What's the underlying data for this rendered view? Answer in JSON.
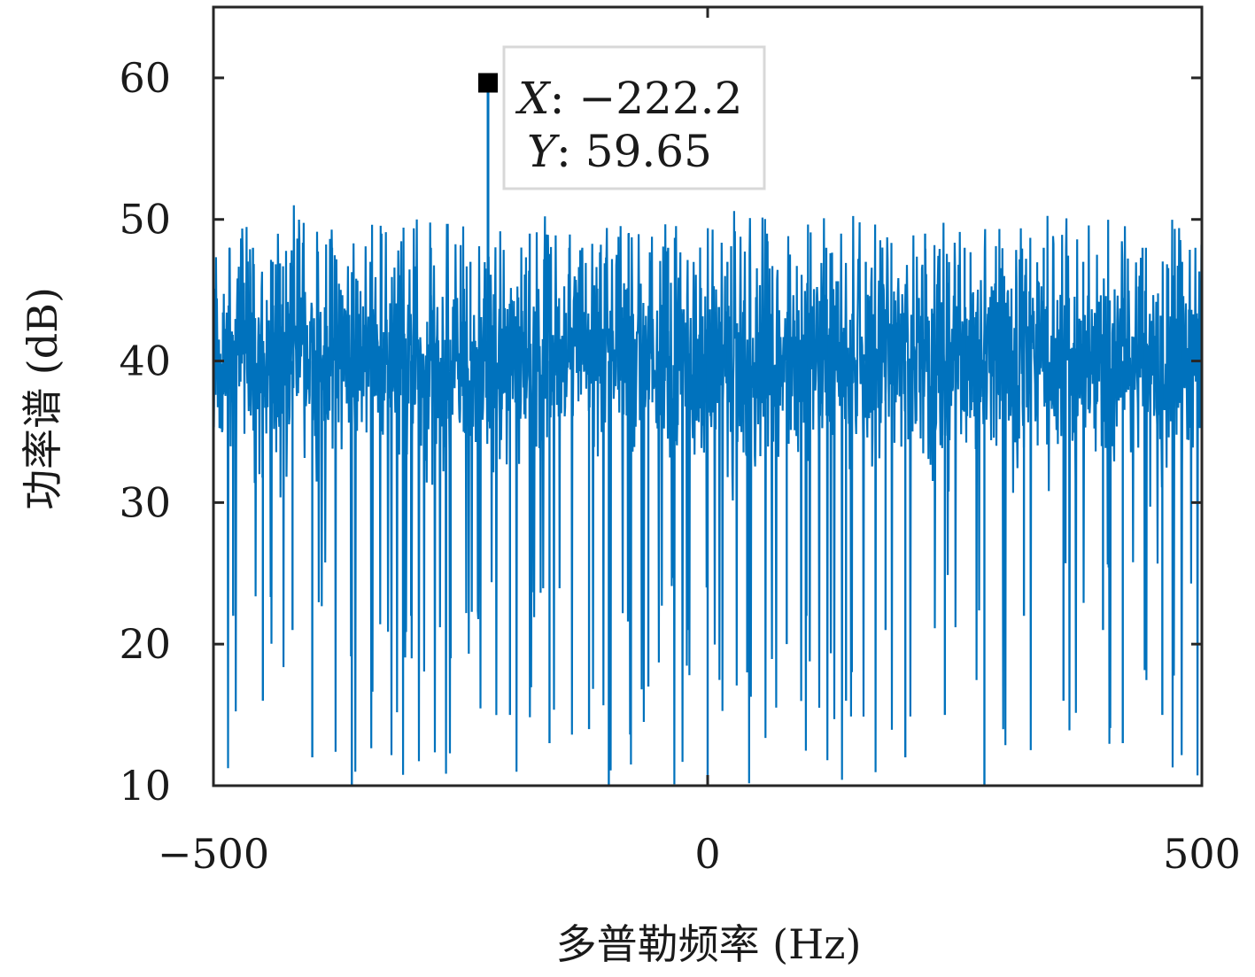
{
  "chart_data": {
    "type": "line",
    "title": "",
    "xlabel": "多普勒频率 (Hz)",
    "ylabel": "功率谱 (dB)",
    "xlim": [
      -500,
      500
    ],
    "ylim": [
      10,
      65
    ],
    "xticks": [
      -500,
      0,
      500
    ],
    "xtick_labels": [
      "−500",
      "0",
      "500"
    ],
    "yticks": [
      10,
      20,
      30,
      40,
      50,
      60
    ],
    "ytick_labels": [
      "10",
      "20",
      "30",
      "40",
      "50",
      "60"
    ],
    "grid": false,
    "series": [
      {
        "color": "#0072bd",
        "description_values": {
          "noise_floor_mean_db": 40,
          "noise_band_db": [
            33,
            47
          ],
          "typical_peak_max_db": 50,
          "typical_dip_min_db": 10,
          "spike": {
            "x": -222.2,
            "y": 59.65
          }
        },
        "x": [
          -500,
          -480,
          -460,
          -450,
          -440,
          -420,
          -400,
          -380,
          -360,
          -330,
          -300,
          -280,
          -260,
          -240,
          -222.2,
          -200,
          -180,
          -160,
          -140,
          -120,
          -100,
          -80,
          -60,
          -40,
          -20,
          0,
          20,
          40,
          60,
          80,
          100,
          120,
          140,
          160,
          180,
          200,
          220,
          240,
          260,
          280,
          300,
          320,
          340,
          360,
          380,
          400,
          420,
          440,
          460,
          480,
          500
        ],
        "y": [
          46,
          22,
          48,
          16,
          47,
          21,
          12,
          48,
          10,
          49,
          22,
          48,
          19,
          47,
          59.65,
          15,
          49,
          13,
          48,
          14,
          10,
          49,
          17,
          48,
          21,
          10,
          47,
          18,
          49,
          20,
          22,
          48,
          16,
          47,
          21,
          12,
          49,
          15,
          48,
          10,
          46,
          22,
          48,
          16,
          47,
          21,
          13,
          48,
          15,
          47,
          52
        ]
      }
    ],
    "datatip": {
      "x_key": "X",
      "x_text": ": −222.2",
      "y_key": "Y",
      "y_text": ": 59.65",
      "x": -222.2,
      "y": 59.65
    }
  }
}
